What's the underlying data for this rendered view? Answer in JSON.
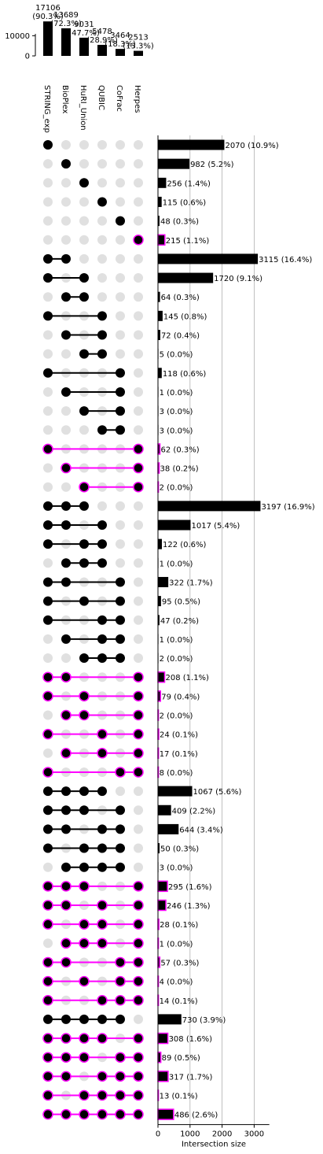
{
  "chart_data": {
    "type": "upset",
    "sets": [
      "STRING_exp",
      "BioPlex",
      "HuRI_Union",
      "QUBIC",
      "CoFrac",
      "Herpes"
    ],
    "set_sizes": [
      17106,
      13689,
      9031,
      5478,
      3464,
      2513
    ],
    "set_size_labels": [
      "17106\n(90.3%)",
      "13689\n(72.3%)",
      "9031\n(47.7%)",
      "5478\n(28.9%)",
      "3464\n(18.3%)",
      "2513\n(13.3%)"
    ],
    "set_size_axis": {
      "ticks": [
        0,
        10000
      ],
      "ylim": [
        0,
        17500
      ]
    },
    "intersection_axis": {
      "xlabel": "Intersection size",
      "ticks": [
        0,
        1000,
        2000,
        3000
      ],
      "xlim": [
        0,
        3350
      ],
      "grid": true
    },
    "highlight_color": "#ff00ff",
    "base_color": "#000000",
    "inactive_dot_color": "#e0e0e0",
    "intersections": [
      {
        "members": [
          0
        ],
        "value": 2070,
        "label": "2070 (10.9%)",
        "highlight": false
      },
      {
        "members": [
          1
        ],
        "value": 982,
        "label": "982 (5.2%)",
        "highlight": false
      },
      {
        "members": [
          2
        ],
        "value": 256,
        "label": "256 (1.4%)",
        "highlight": false
      },
      {
        "members": [
          3
        ],
        "value": 115,
        "label": "115 (0.6%)",
        "highlight": false
      },
      {
        "members": [
          4
        ],
        "value": 48,
        "label": "48 (0.3%)",
        "highlight": false
      },
      {
        "members": [
          5
        ],
        "value": 215,
        "label": "215 (1.1%)",
        "highlight": true
      },
      {
        "members": [
          0,
          1
        ],
        "value": 3115,
        "label": "3115 (16.4%)",
        "highlight": false
      },
      {
        "members": [
          0,
          2
        ],
        "value": 1720,
        "label": "1720 (9.1%)",
        "highlight": false
      },
      {
        "members": [
          1,
          2
        ],
        "value": 64,
        "label": "64 (0.3%)",
        "highlight": false
      },
      {
        "members": [
          0,
          3
        ],
        "value": 145,
        "label": "145 (0.8%)",
        "highlight": false
      },
      {
        "members": [
          1,
          3
        ],
        "value": 72,
        "label": "72 (0.4%)",
        "highlight": false
      },
      {
        "members": [
          2,
          3
        ],
        "value": 5,
        "label": "5 (0.0%)",
        "highlight": false
      },
      {
        "members": [
          0,
          4
        ],
        "value": 118,
        "label": "118 (0.6%)",
        "highlight": false
      },
      {
        "members": [
          1,
          4
        ],
        "value": 1,
        "label": "1 (0.0%)",
        "highlight": false
      },
      {
        "members": [
          2,
          4
        ],
        "value": 3,
        "label": "3 (0.0%)",
        "highlight": false
      },
      {
        "members": [
          3,
          4
        ],
        "value": 3,
        "label": "3 (0.0%)",
        "highlight": false
      },
      {
        "members": [
          0,
          5
        ],
        "value": 62,
        "label": "62 (0.3%)",
        "highlight": true
      },
      {
        "members": [
          1,
          5
        ],
        "value": 38,
        "label": "38 (0.2%)",
        "highlight": true
      },
      {
        "members": [
          2,
          5
        ],
        "value": 2,
        "label": "2 (0.0%)",
        "highlight": true
      },
      {
        "members": [
          0,
          1,
          2
        ],
        "value": 3197,
        "label": "3197 (16.9%)",
        "highlight": false
      },
      {
        "members": [
          0,
          1,
          3
        ],
        "value": 1017,
        "label": "1017 (5.4%)",
        "highlight": false
      },
      {
        "members": [
          0,
          2,
          3
        ],
        "value": 122,
        "label": "122 (0.6%)",
        "highlight": false
      },
      {
        "members": [
          1,
          2,
          3
        ],
        "value": 1,
        "label": "1 (0.0%)",
        "highlight": false
      },
      {
        "members": [
          0,
          1,
          4
        ],
        "value": 322,
        "label": "322 (1.7%)",
        "highlight": false
      },
      {
        "members": [
          0,
          2,
          4
        ],
        "value": 95,
        "label": "95 (0.5%)",
        "highlight": false
      },
      {
        "members": [
          0,
          3,
          4
        ],
        "value": 47,
        "label": "47 (0.2%)",
        "highlight": false
      },
      {
        "members": [
          1,
          3,
          4
        ],
        "value": 1,
        "label": "1 (0.0%)",
        "highlight": false
      },
      {
        "members": [
          2,
          3,
          4
        ],
        "value": 2,
        "label": "2 (0.0%)",
        "highlight": false
      },
      {
        "members": [
          0,
          1,
          5
        ],
        "value": 208,
        "label": "208 (1.1%)",
        "highlight": true
      },
      {
        "members": [
          0,
          2,
          5
        ],
        "value": 79,
        "label": "79 (0.4%)",
        "highlight": true
      },
      {
        "members": [
          1,
          2,
          5
        ],
        "value": 2,
        "label": "2 (0.0%)",
        "highlight": true
      },
      {
        "members": [
          0,
          3,
          5
        ],
        "value": 24,
        "label": "24 (0.1%)",
        "highlight": true
      },
      {
        "members": [
          1,
          3,
          5
        ],
        "value": 17,
        "label": "17 (0.1%)",
        "highlight": true
      },
      {
        "members": [
          0,
          4,
          5
        ],
        "value": 8,
        "label": "8 (0.0%)",
        "highlight": true
      },
      {
        "members": [
          0,
          1,
          2,
          3
        ],
        "value": 1067,
        "label": "1067 (5.6%)",
        "highlight": false
      },
      {
        "members": [
          0,
          1,
          2,
          4
        ],
        "value": 409,
        "label": "409 (2.2%)",
        "highlight": false
      },
      {
        "members": [
          0,
          1,
          3,
          4
        ],
        "value": 644,
        "label": "644 (3.4%)",
        "highlight": false
      },
      {
        "members": [
          0,
          2,
          3,
          4
        ],
        "value": 50,
        "label": "50 (0.3%)",
        "highlight": false
      },
      {
        "members": [
          1,
          2,
          3,
          4
        ],
        "value": 3,
        "label": "3 (0.0%)",
        "highlight": false
      },
      {
        "members": [
          0,
          1,
          2,
          5
        ],
        "value": 295,
        "label": "295 (1.6%)",
        "highlight": true
      },
      {
        "members": [
          0,
          1,
          3,
          5
        ],
        "value": 246,
        "label": "246 (1.3%)",
        "highlight": true
      },
      {
        "members": [
          0,
          2,
          3,
          5
        ],
        "value": 28,
        "label": "28 (0.1%)",
        "highlight": true
      },
      {
        "members": [
          1,
          2,
          3,
          5
        ],
        "value": 1,
        "label": "1 (0.0%)",
        "highlight": true
      },
      {
        "members": [
          0,
          1,
          4,
          5
        ],
        "value": 57,
        "label": "57 (0.3%)",
        "highlight": true
      },
      {
        "members": [
          0,
          2,
          4,
          5
        ],
        "value": 4,
        "label": "4 (0.0%)",
        "highlight": true
      },
      {
        "members": [
          0,
          3,
          4,
          5
        ],
        "value": 14,
        "label": "14 (0.1%)",
        "highlight": true
      },
      {
        "members": [
          0,
          1,
          2,
          3,
          4
        ],
        "value": 730,
        "label": "730 (3.9%)",
        "highlight": false
      },
      {
        "members": [
          0,
          1,
          2,
          3,
          5
        ],
        "value": 308,
        "label": "308 (1.6%)",
        "highlight": true
      },
      {
        "members": [
          0,
          1,
          2,
          4,
          5
        ],
        "value": 89,
        "label": "89 (0.5%)",
        "highlight": true
      },
      {
        "members": [
          0,
          1,
          3,
          4,
          5
        ],
        "value": 317,
        "label": "317 (1.7%)",
        "highlight": true
      },
      {
        "members": [
          0,
          2,
          3,
          4,
          5
        ],
        "value": 13,
        "label": "13 (0.1%)",
        "highlight": true
      },
      {
        "members": [
          0,
          1,
          2,
          3,
          4,
          5
        ],
        "value": 486,
        "label": "486 (2.6%)",
        "highlight": true
      }
    ]
  }
}
